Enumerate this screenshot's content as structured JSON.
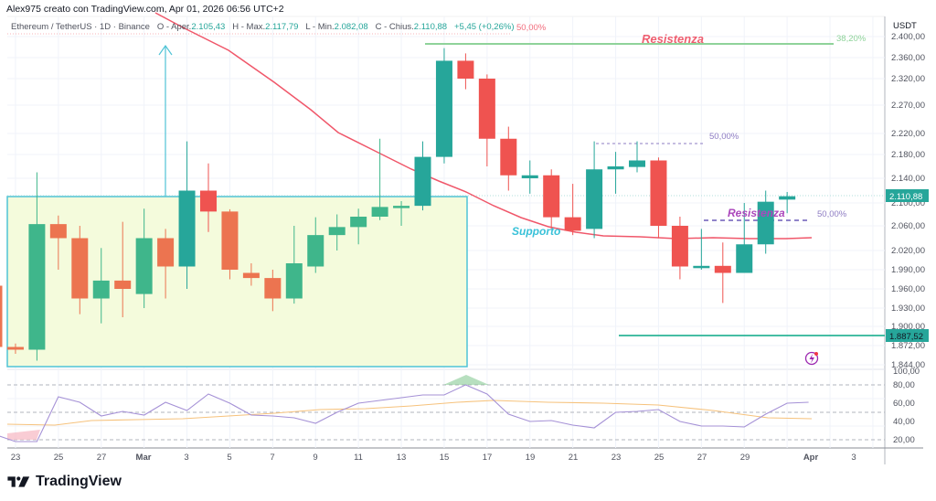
{
  "caption": "Alex975 creato con TradingView.com, Apr 01, 2026 06:56 UTC+2",
  "legend": {
    "symbol": "Ethereum / TetherUS · 1D · Binance",
    "open_label": "O - Aper.",
    "open_value": "2.105,43",
    "high_label": "H - Max.",
    "high_value": "2.117,79",
    "low_label": "L - Min.",
    "low_value": "2.082,08",
    "close_label": "C - Chius.",
    "close_value": "2.110,88",
    "change": "+5,45 (+0,26%)"
  },
  "axis": {
    "currency": "USDT",
    "price_ticks": [
      "2.400,00",
      "2.360,00",
      "2.320,00",
      "2.270,00",
      "2.220,00",
      "2.180,00",
      "2.140,00",
      "2.100,00",
      "2.060,00",
      "2.020,00",
      "1.990,00",
      "1.960,00",
      "1.930,00",
      "1.900,00",
      "1.872,00",
      "1.844,00"
    ],
    "current_price_tag": "2.110,88",
    "level_tag": "1.887,52",
    "rsi_ticks": [
      "100,00",
      "80,00",
      "60,00",
      "40,00",
      "20,00"
    ],
    "date_ticks": [
      "23",
      "25",
      "27",
      "Mar",
      "3",
      "5",
      "7",
      "9",
      "11",
      "13",
      "15",
      "17",
      "19",
      "21",
      "23",
      "25",
      "27",
      "29",
      "Apr",
      "3"
    ]
  },
  "annotations": {
    "resistance_top": "Resistenza",
    "resistance_mid": "Resistenza",
    "support": "Supporto",
    "fib_top_pct": "50,00%",
    "fib_top_right_pct": "38,20%",
    "fib_mid_pct": "50,00%",
    "fib_low_pct": "50,00%"
  },
  "colors": {
    "up": "#26a69a",
    "down": "#ef5350",
    "up_in_zone": "#3fb68b",
    "down_in_zone": "#ec7450",
    "ma": "#f0576a",
    "zone_fill": "#f4fbdc",
    "zone_border": "#4fc3d6",
    "resistance_line": "#8fd39a",
    "support_line": "#2bb597",
    "rsi_line": "#a591d6",
    "rsi_ma": "#f6c27c"
  },
  "brand": "TradingView",
  "chart_data": {
    "type": "candlestick",
    "title": "Ethereum / TetherUS · 1D · Binance",
    "xlabel": "",
    "ylabel": "USDT",
    "ylim": [
      1844,
      2400
    ],
    "candles": [
      {
        "date": "Feb 22",
        "open": 1965,
        "high": 1965,
        "low": 1850,
        "close": 1870
      },
      {
        "date": "Feb 23",
        "open": 1870,
        "high": 1875,
        "low": 1860,
        "close": 1866
      },
      {
        "date": "Feb 24",
        "open": 1866,
        "high": 2150,
        "low": 1850,
        "close": 2063
      },
      {
        "date": "Feb 25",
        "open": 2063,
        "high": 2078,
        "low": 1990,
        "close": 2040
      },
      {
        "date": "Feb 26",
        "open": 2040,
        "high": 2060,
        "low": 1920,
        "close": 1945
      },
      {
        "date": "Feb 27",
        "open": 1945,
        "high": 2024,
        "low": 1905,
        "close": 1973
      },
      {
        "date": "Feb 28",
        "open": 1973,
        "high": 2067,
        "low": 1915,
        "close": 1960
      },
      {
        "date": "Mar 1",
        "open": 1952,
        "high": 2090,
        "low": 1930,
        "close": 2040
      },
      {
        "date": "Mar 2",
        "open": 2040,
        "high": 2055,
        "low": 1945,
        "close": 1995
      },
      {
        "date": "Mar 3",
        "open": 1995,
        "high": 2205,
        "low": 1960,
        "close": 2120
      },
      {
        "date": "Mar 4",
        "open": 2120,
        "high": 2165,
        "low": 2050,
        "close": 2085
      },
      {
        "date": "Mar 5",
        "open": 2085,
        "high": 2089,
        "low": 1975,
        "close": 1990
      },
      {
        "date": "Mar 6",
        "open": 1985,
        "high": 2000,
        "low": 1965,
        "close": 1977
      },
      {
        "date": "Mar 7",
        "open": 1977,
        "high": 1990,
        "low": 1925,
        "close": 1945
      },
      {
        "date": "Mar 8",
        "open": 1945,
        "high": 2060,
        "low": 1937,
        "close": 2000
      },
      {
        "date": "Mar 9",
        "open": 1995,
        "high": 2075,
        "low": 1985,
        "close": 2045
      },
      {
        "date": "Mar 10",
        "open": 2045,
        "high": 2080,
        "low": 2020,
        "close": 2058
      },
      {
        "date": "Mar 11",
        "open": 2058,
        "high": 2090,
        "low": 2030,
        "close": 2076
      },
      {
        "date": "Mar 12",
        "open": 2076,
        "high": 2210,
        "low": 2070,
        "close": 2093
      },
      {
        "date": "Mar 13",
        "open": 2093,
        "high": 2103,
        "low": 2060,
        "close": 2095
      },
      {
        "date": "Mar 14",
        "open": 2095,
        "high": 2205,
        "low": 2087,
        "close": 2176
      },
      {
        "date": "Mar 15",
        "open": 2176,
        "high": 2378,
        "low": 2165,
        "close": 2354
      },
      {
        "date": "Mar 16",
        "open": 2354,
        "high": 2368,
        "low": 2300,
        "close": 2320
      },
      {
        "date": "Mar 17",
        "open": 2320,
        "high": 2328,
        "low": 2160,
        "close": 2210
      },
      {
        "date": "Mar 18",
        "open": 2210,
        "high": 2232,
        "low": 2120,
        "close": 2145
      },
      {
        "date": "Mar 19",
        "open": 2140,
        "high": 2170,
        "low": 2115,
        "close": 2145
      },
      {
        "date": "Mar 20",
        "open": 2145,
        "high": 2155,
        "low": 2055,
        "close": 2075
      },
      {
        "date": "Mar 21",
        "open": 2075,
        "high": 2131,
        "low": 2045,
        "close": 2052
      },
      {
        "date": "Mar 22",
        "open": 2055,
        "high": 2205,
        "low": 2040,
        "close": 2155
      },
      {
        "date": "Mar 23",
        "open": 2155,
        "high": 2185,
        "low": 2115,
        "close": 2160
      },
      {
        "date": "Mar 24",
        "open": 2159,
        "high": 2205,
        "low": 2150,
        "close": 2170
      },
      {
        "date": "Mar 25",
        "open": 2170,
        "high": 2175,
        "low": 2040,
        "close": 2060
      },
      {
        "date": "Mar 26",
        "open": 2060,
        "high": 2076,
        "low": 1975,
        "close": 1995
      },
      {
        "date": "Mar 27",
        "open": 1995,
        "high": 2055,
        "low": 1990,
        "close": 1996
      },
      {
        "date": "Mar 28",
        "open": 1996,
        "high": 2033,
        "low": 1938,
        "close": 1985
      },
      {
        "date": "Mar 29",
        "open": 1985,
        "high": 2100,
        "low": 1985,
        "close": 2030
      },
      {
        "date": "Mar 30",
        "open": 2030,
        "high": 2120,
        "low": 2015,
        "close": 2102
      },
      {
        "date": "Mar 31",
        "open": 2105.43,
        "high": 2117.79,
        "low": 2082.08,
        "close": 2110.88
      }
    ],
    "indicators": {
      "moving_average": {
        "name": "MA",
        "approx": "declining from ~2,420 (Feb 27) to ~2,040 (Mar 31)"
      },
      "rsi": {
        "range": [
          0,
          100
        ],
        "levels": [
          80,
          50,
          20
        ],
        "values_approx": [
          26,
          18,
          18,
          67,
          61,
          46,
          51,
          47,
          61,
          52,
          70,
          60,
          47,
          46,
          44,
          38,
          50,
          60,
          63,
          66,
          69,
          69,
          80,
          70,
          48,
          40,
          41,
          36,
          33,
          50,
          51,
          53,
          40,
          35,
          35,
          34,
          48,
          60,
          61
        ]
      }
    },
    "levels": [
      {
        "label": "Resistenza",
        "price": 2385
      },
      {
        "label": "Resistenza",
        "price": 2075
      },
      {
        "label": "Supporto / zone top",
        "price": 2105
      },
      {
        "label": "Support line",
        "price": 1887.52
      }
    ]
  }
}
